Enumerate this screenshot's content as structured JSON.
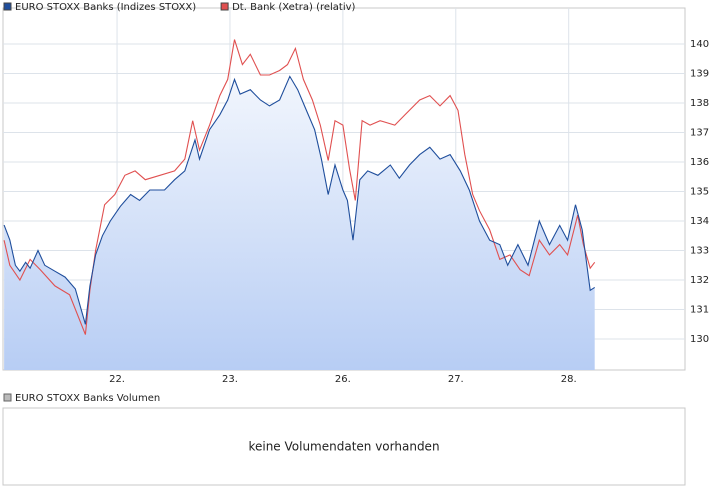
{
  "chart_data": {
    "type": "line",
    "series": [
      {
        "name": "EURO STOXX Banks (Indizes STOXX)",
        "color": "#1f4e9c",
        "area": true,
        "x": [
          0,
          0.05,
          0.1,
          0.14,
          0.19,
          0.23,
          0.3,
          0.36,
          0.45,
          0.54,
          0.63,
          0.72,
          0.76,
          0.81,
          0.87,
          0.94,
          1.03,
          1.12,
          1.2,
          1.29,
          1.42,
          1.51,
          1.6,
          1.69,
          1.73,
          1.82,
          1.91,
          1.98,
          2.04,
          2.09,
          2.18,
          2.27,
          2.35,
          2.44,
          2.53,
          2.6,
          2.66,
          2.75,
          2.81,
          2.87,
          2.93,
          3.0,
          3.04,
          3.09,
          3.15,
          3.22,
          3.31,
          3.42,
          3.5,
          3.59,
          3.68,
          3.77,
          3.86,
          3.95,
          4.04,
          4.12,
          4.21,
          4.3,
          4.39,
          4.46,
          4.55,
          4.64,
          4.74,
          4.83,
          4.92,
          4.99,
          5.06,
          5.12,
          5.19,
          5.23
        ],
        "values": [
          133.86,
          133.36,
          132.5,
          132.3,
          132.6,
          132.4,
          133.0,
          132.5,
          132.3,
          132.1,
          131.7,
          130.5,
          131.8,
          132.85,
          133.5,
          134.0,
          134.5,
          134.9,
          134.7,
          135.05,
          135.05,
          135.4,
          135.7,
          136.75,
          136.1,
          137.1,
          137.6,
          138.1,
          138.8,
          138.3,
          138.45,
          138.1,
          137.9,
          138.1,
          138.9,
          138.45,
          137.9,
          137.1,
          136.1,
          134.9,
          135.9,
          135.05,
          134.7,
          133.35,
          135.4,
          135.7,
          135.55,
          135.9,
          135.45,
          135.9,
          136.25,
          136.5,
          136.1,
          136.25,
          135.7,
          135.05,
          134.0,
          133.35,
          133.2,
          132.5,
          133.2,
          132.5,
          134.0,
          133.2,
          133.85,
          133.35,
          134.55,
          133.7,
          131.65,
          131.75
        ]
      },
      {
        "name": "Dt. Bank (Xetra) (relativ)",
        "color": "#e05050",
        "area": false,
        "x": [
          0,
          0.05,
          0.14,
          0.23,
          0.32,
          0.45,
          0.58,
          0.72,
          0.76,
          0.81,
          0.89,
          0.98,
          1.07,
          1.16,
          1.25,
          1.38,
          1.51,
          1.6,
          1.67,
          1.73,
          1.82,
          1.91,
          1.98,
          2.04,
          2.11,
          2.18,
          2.27,
          2.35,
          2.44,
          2.51,
          2.58,
          2.65,
          2.73,
          2.8,
          2.87,
          2.93,
          3.0,
          3.06,
          3.11,
          3.17,
          3.24,
          3.33,
          3.46,
          3.55,
          3.68,
          3.77,
          3.86,
          3.95,
          4.02,
          4.08,
          4.15,
          4.21,
          4.3,
          4.39,
          4.48,
          4.57,
          4.65,
          4.74,
          4.83,
          4.92,
          4.99,
          5.08,
          5.13,
          5.19,
          5.23
        ],
        "values": [
          133.35,
          132.5,
          132.0,
          132.7,
          132.35,
          131.8,
          131.5,
          130.15,
          131.65,
          133.0,
          134.55,
          134.9,
          135.55,
          135.7,
          135.4,
          135.55,
          135.7,
          136.1,
          137.4,
          136.4,
          137.25,
          138.25,
          138.8,
          140.15,
          139.3,
          139.65,
          138.95,
          138.95,
          139.1,
          139.3,
          139.85,
          138.8,
          138.1,
          137.25,
          136.05,
          137.4,
          137.25,
          135.75,
          134.7,
          137.4,
          137.25,
          137.4,
          137.25,
          137.6,
          138.1,
          138.25,
          137.9,
          138.25,
          137.75,
          136.25,
          134.9,
          134.35,
          133.7,
          132.7,
          132.85,
          132.35,
          132.15,
          133.35,
          132.85,
          133.2,
          132.85,
          134.2,
          133.2,
          132.4,
          132.6
        ]
      }
    ],
    "xlim": [
      -0.01,
      6.03
    ],
    "xticks": [
      {
        "value": 1,
        "label": "22."
      },
      {
        "value": 2,
        "label": "23."
      },
      {
        "value": 3,
        "label": "26."
      },
      {
        "value": 4,
        "label": "27."
      },
      {
        "value": 5,
        "label": "28."
      }
    ],
    "ylim": [
      128.95,
      141.22
    ],
    "yticks": [
      130,
      131,
      132,
      133,
      134,
      135,
      136,
      137,
      138,
      139,
      140
    ],
    "grid": true
  },
  "volume_panel": {
    "legend": "EURO STOXX Banks Volumen",
    "message": "keine Volumendaten vorhanden"
  }
}
